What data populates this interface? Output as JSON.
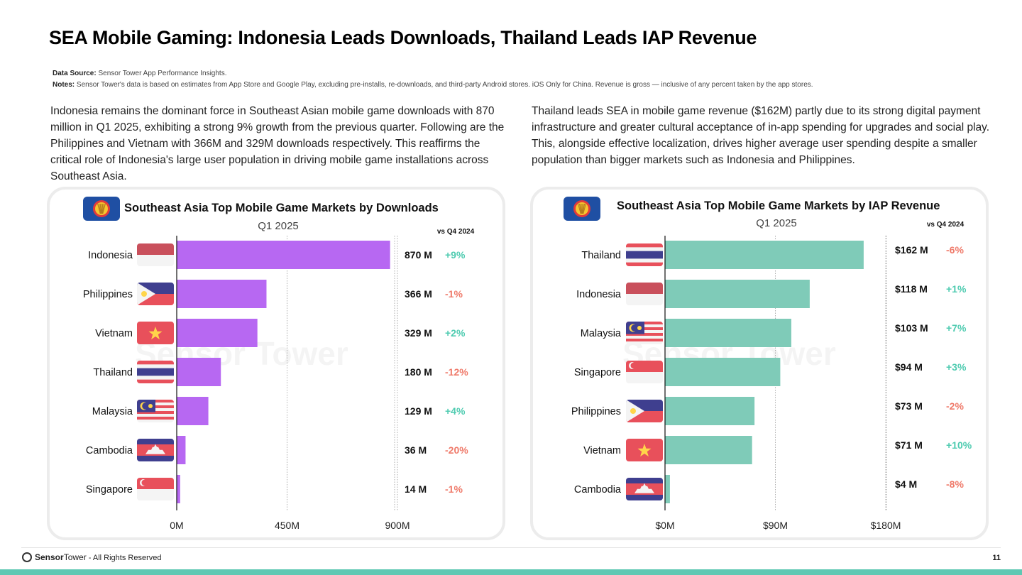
{
  "title": "SEA Mobile Gaming: Indonesia Leads Downloads, Thailand Leads IAP Revenue",
  "notes": {
    "source_label": "Data Source:",
    "source_text": " Sensor Tower App Performance Insights.",
    "notes_label": "Notes:",
    "notes_text": " Sensor Tower's data is based on estimates from App Store and Google Play, excluding pre-installs, re-downloads, and third-party Android stores. iOS Only for China.  Revenue is gross — inclusive of any percent taken by the app stores."
  },
  "paragraphs": {
    "left": "Indonesia remains the dominant force in Southeast Asian mobile game downloads with 870 million in Q1 2025, exhibiting a strong 9% growth from the previous quarter. Following are the Philippines and Vietnam with 366M and 329M downloads respectively. This reaffirms the critical role of Indonesia's large user population in driving mobile game installations across Southeast Asia.",
    "right": "Thailand leads SEA in mobile game revenue ($162M) partly due to its strong digital payment infrastructure and greater cultural acceptance of in-app spending for upgrades and social play. This, alongside effective localization, drives higher average user spending despite a smaller population than bigger markets such as Indonesia and Philippines."
  },
  "watermark": "Sensor Tower",
  "colors": {
    "downloads_bar": "#b768f2",
    "revenue_bar": "#7fcbb8",
    "positive": "#4ecbb0",
    "negative": "#ef7a6a"
  },
  "chart_data": [
    {
      "type": "bar",
      "orientation": "horizontal",
      "title": "Southeast Asia Top Mobile Game Markets by Downloads",
      "subtitle": "Q1 2025",
      "change_header": "vs Q4 2024",
      "categories": [
        "Indonesia",
        "Philippines",
        "Vietnam",
        "Thailand",
        "Malaysia",
        "Cambodia",
        "Singapore"
      ],
      "flags": [
        "indonesia",
        "philippines",
        "vietnam",
        "thailand",
        "malaysia",
        "cambodia",
        "singapore"
      ],
      "values": [
        870,
        366,
        329,
        180,
        129,
        36,
        14
      ],
      "value_labels": [
        "870 M",
        "366 M",
        "329 M",
        "180 M",
        "129 M",
        "36 M",
        "14 M"
      ],
      "changes": [
        "+9%",
        "-1%",
        "+2%",
        "-12%",
        "+4%",
        "-20%",
        "-1%"
      ],
      "xlim": [
        0,
        900
      ],
      "ticks": [
        0,
        450,
        900
      ],
      "tick_labels": [
        "0M",
        "450M",
        "900M"
      ],
      "grid": true,
      "bar_color": "#b768f2"
    },
    {
      "type": "bar",
      "orientation": "horizontal",
      "title": "Southeast Asia Top Mobile Game Markets by IAP Revenue",
      "subtitle": "Q1 2025",
      "change_header": "vs Q4 2024",
      "categories": [
        "Thailand",
        "Indonesia",
        "Malaysia",
        "Singapore",
        "Philippines",
        "Vietnam",
        "Cambodia"
      ],
      "flags": [
        "thailand",
        "indonesia",
        "malaysia",
        "singapore",
        "philippines",
        "vietnam",
        "cambodia"
      ],
      "values": [
        162,
        118,
        103,
        94,
        73,
        71,
        4
      ],
      "value_labels": [
        "$162 M",
        "$118 M",
        "$103 M",
        "$94 M",
        "$73 M",
        "$71 M",
        "$4 M"
      ],
      "changes": [
        "-6%",
        "+1%",
        "+7%",
        "+3%",
        "-2%",
        "+10%",
        "-8%"
      ],
      "xlim": [
        0,
        180
      ],
      "ticks": [
        0,
        90,
        180
      ],
      "tick_labels": [
        "$0M",
        "$90M",
        "$180M"
      ],
      "grid": true,
      "bar_color": "#7fcbb8"
    }
  ],
  "footer": {
    "brand_bold": "Sensor",
    "brand_light": "Tower",
    "rights": " - All Rights Reserved",
    "page": "11"
  }
}
